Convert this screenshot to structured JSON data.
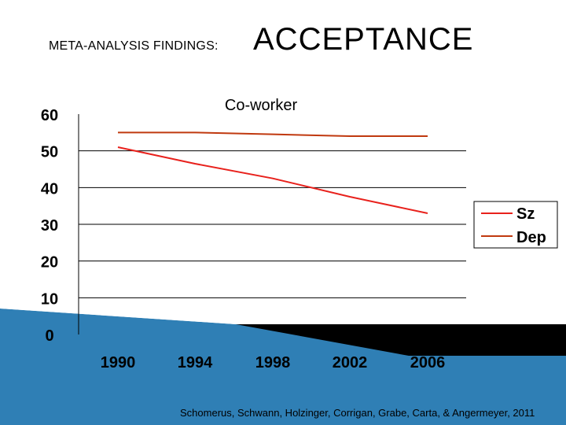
{
  "slide": {
    "heading_small": "META-ANALYSIS FINDINGS:",
    "heading_big": "ACCEPTANCE",
    "citation": "Schomerus, Schwann, Holzinger, Corrigan, Grabe, Carta, & Angermeyer, 2011"
  },
  "colors": {
    "sz": "#e8211c",
    "dep": "#c0390f",
    "grid": "#000000",
    "band_light": "#bfe0f0",
    "band_blue": "#2f7fb5",
    "band_black": "#000000"
  },
  "chart_data": {
    "type": "line",
    "title": "Co-worker",
    "x": [
      "1990",
      "1994",
      "1998",
      "2002",
      "2006"
    ],
    "y_ticks": [
      "0",
      "10",
      "20",
      "30",
      "40",
      "50",
      "60"
    ],
    "ylim": [
      0,
      60
    ],
    "grid": true,
    "legend_position": "right",
    "series": [
      {
        "name": "Sz",
        "color": "#e8211c",
        "values": [
          51,
          46.5,
          42.5,
          37.5,
          33
        ]
      },
      {
        "name": "Dep",
        "color": "#c0390f",
        "values": [
          55,
          55,
          54.5,
          54,
          54
        ]
      }
    ]
  }
}
